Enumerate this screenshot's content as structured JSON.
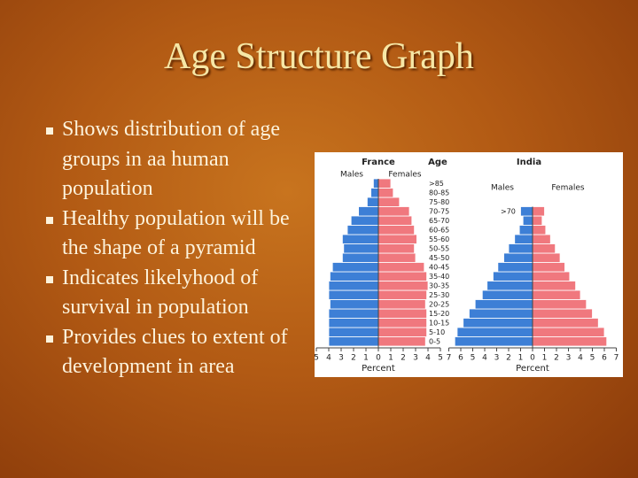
{
  "slide": {
    "title": "Age Structure Graph",
    "bullets": [
      "Shows distribution of age groups in aa human population",
      "Healthy population will be the shape of a pyramid",
      "Indicates likelyhood of survival in population",
      "Provides clues to extent of development in area"
    ]
  },
  "chart_data": [
    {
      "type": "pyramid",
      "title": "France",
      "age_label": "Age",
      "xlabel": "Percent",
      "categories": [
        "0-5",
        "5-10",
        "10-15",
        "15-20",
        "20-25",
        "25-30",
        "30-35",
        "35-40",
        "40-45",
        "45-50",
        "50-55",
        "55-60",
        "60-65",
        "65-70",
        "70-75",
        "75-80",
        "80-85",
        ">85"
      ],
      "series": [
        {
          "name": "Males",
          "color": "#3d7fd6",
          "values": [
            -4.0,
            -4.0,
            -4.0,
            -4.0,
            -3.9,
            -4.0,
            -4.0,
            -3.9,
            -3.7,
            -2.9,
            -2.8,
            -2.9,
            -2.5,
            -2.2,
            -1.6,
            -0.9,
            -0.6,
            -0.4
          ]
        },
        {
          "name": "Females",
          "color": "#f0787e",
          "values": [
            3.8,
            3.9,
            3.9,
            3.9,
            3.8,
            3.9,
            4.0,
            3.9,
            3.7,
            3.0,
            2.9,
            3.1,
            2.9,
            2.7,
            2.5,
            1.7,
            1.2,
            1.0
          ]
        }
      ],
      "xlim": [
        -5,
        5
      ],
      "xticks": [
        {
          "value": -5,
          "label": "5"
        },
        {
          "value": -4,
          "label": "4"
        },
        {
          "value": -3,
          "label": "3"
        },
        {
          "value": -2,
          "label": "2"
        },
        {
          "value": -1,
          "label": "1"
        },
        0,
        1,
        2,
        3,
        4,
        5
      ]
    },
    {
      "type": "pyramid",
      "title": "India",
      "xlabel": "Percent",
      "categories": [
        null,
        null,
        null,
        null,
        null,
        null,
        null,
        null,
        null,
        null,
        null,
        null,
        null,
        null,
        ">70"
      ],
      "series": [
        {
          "name": "Males",
          "color": "#3d7fd6",
          "values": [
            -6.5,
            -6.3,
            -5.8,
            -5.3,
            -4.8,
            -4.2,
            -3.8,
            -3.3,
            -2.9,
            -2.4,
            -2.0,
            -1.5,
            -1.1,
            -0.8,
            -1.0
          ]
        },
        {
          "name": "Females",
          "color": "#f0787e",
          "values": [
            6.2,
            6.0,
            5.5,
            5.0,
            4.5,
            4.0,
            3.6,
            3.1,
            2.7,
            2.3,
            1.9,
            1.5,
            1.1,
            0.8,
            1.0
          ]
        }
      ],
      "xlim": [
        -7,
        7
      ],
      "xticks": [
        {
          "value": -7,
          "label": "7"
        },
        {
          "value": -6,
          "label": "6"
        },
        {
          "value": -5,
          "label": "5"
        },
        {
          "value": -4,
          "label": "4"
        },
        {
          "value": -3,
          "label": "3"
        },
        {
          "value": -2,
          "label": "2"
        },
        {
          "value": -1,
          "label": "1"
        },
        0,
        1,
        2,
        3,
        4,
        5,
        6,
        7
      ]
    }
  ]
}
